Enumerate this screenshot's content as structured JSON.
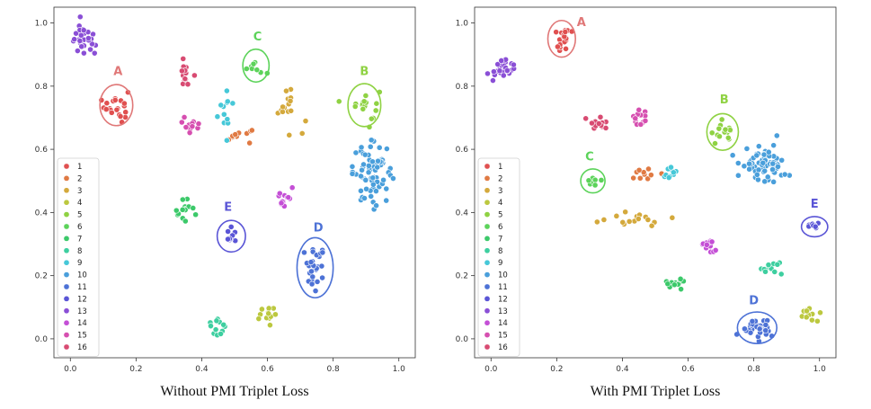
{
  "chart_data": [
    {
      "type": "scatter",
      "caption": "Without PMI Triplet Loss",
      "xlim": [
        -0.05,
        1.05
      ],
      "ylim": [
        -0.06,
        1.05
      ],
      "xticks": [
        "0.0",
        "0.2",
        "0.4",
        "0.6",
        "0.8",
        "1.0"
      ],
      "yticks": [
        "0.0",
        "0.2",
        "0.4",
        "0.6",
        "0.8",
        "1.0"
      ],
      "legend_labels": [
        "1",
        "2",
        "3",
        "4",
        "5",
        "6",
        "7",
        "8",
        "9",
        "10",
        "11",
        "12",
        "13",
        "14",
        "15",
        "16"
      ],
      "clusters": [
        {
          "label": "1",
          "color": "#e05050",
          "cx": 0.14,
          "cy": 0.74,
          "sx": 0.018,
          "sy": 0.026,
          "n": 22
        },
        {
          "label": "2",
          "color": "#e07a43",
          "cx": 0.51,
          "cy": 0.64,
          "sx": 0.025,
          "sy": 0.015,
          "n": 10
        },
        {
          "label": "3",
          "color": "#d4a93c",
          "cx": 0.665,
          "cy": 0.745,
          "sx": 0.028,
          "sy": 0.035,
          "n": 16
        },
        {
          "label": "4",
          "color": "#bcc83f",
          "cx": 0.605,
          "cy": 0.075,
          "sx": 0.018,
          "sy": 0.015,
          "n": 12
        },
        {
          "label": "5",
          "color": "#8fd243",
          "cx": 0.895,
          "cy": 0.74,
          "sx": 0.022,
          "sy": 0.032,
          "n": 18
        },
        {
          "label": "6",
          "color": "#5cd35a",
          "cx": 0.565,
          "cy": 0.865,
          "sx": 0.014,
          "sy": 0.015,
          "n": 8
        },
        {
          "label": "7",
          "color": "#3cc96a",
          "cx": 0.345,
          "cy": 0.41,
          "sx": 0.014,
          "sy": 0.02,
          "n": 14
        },
        {
          "label": "8",
          "color": "#3ecfa0",
          "cx": 0.445,
          "cy": 0.04,
          "sx": 0.018,
          "sy": 0.02,
          "n": 12
        },
        {
          "label": "9",
          "color": "#46c8d8",
          "cx": 0.47,
          "cy": 0.72,
          "sx": 0.014,
          "sy": 0.03,
          "n": 12
        },
        {
          "label": "10",
          "color": "#4a9fdb",
          "cx": 0.92,
          "cy": 0.525,
          "sx": 0.03,
          "sy": 0.045,
          "n": 70
        },
        {
          "label": "11",
          "color": "#4d72d6",
          "cx": 0.745,
          "cy": 0.225,
          "sx": 0.018,
          "sy": 0.032,
          "n": 32
        },
        {
          "label": "12",
          "color": "#5a55d6",
          "cx": 0.49,
          "cy": 0.325,
          "sx": 0.01,
          "sy": 0.014,
          "n": 10
        },
        {
          "label": "13",
          "color": "#8a4fd6",
          "cx": 0.04,
          "cy": 0.945,
          "sx": 0.018,
          "sy": 0.025,
          "n": 28
        },
        {
          "label": "14",
          "color": "#c44fd6",
          "cx": 0.655,
          "cy": 0.44,
          "sx": 0.012,
          "sy": 0.018,
          "n": 12
        },
        {
          "label": "15",
          "color": "#d64fb0",
          "cx": 0.365,
          "cy": 0.68,
          "sx": 0.012,
          "sy": 0.017,
          "n": 12
        },
        {
          "label": "16",
          "color": "#d84b72",
          "cx": 0.355,
          "cy": 0.845,
          "sx": 0.01,
          "sy": 0.025,
          "n": 14
        }
      ],
      "annotations": [
        {
          "text": "A",
          "cluster": "1",
          "color": "#e07878",
          "ex": 0.14,
          "ey": 0.74,
          "rx": 0.05,
          "ry": 0.065,
          "lx": 0.145,
          "ly": 0.835
        },
        {
          "text": "B",
          "cluster": "5",
          "color": "#8fd243",
          "ex": 0.895,
          "ey": 0.74,
          "rx": 0.05,
          "ry": 0.068,
          "lx": 0.895,
          "ly": 0.835
        },
        {
          "text": "C",
          "cluster": "6",
          "color": "#5cd35a",
          "ex": 0.565,
          "ey": 0.865,
          "rx": 0.04,
          "ry": 0.052,
          "lx": 0.57,
          "ly": 0.945
        },
        {
          "text": "D",
          "cluster": "11",
          "color": "#4d72d6",
          "ex": 0.745,
          "ey": 0.225,
          "rx": 0.055,
          "ry": 0.095,
          "lx": 0.755,
          "ly": 0.34
        },
        {
          "text": "E",
          "cluster": "12",
          "color": "#5a55d6",
          "ex": 0.49,
          "ey": 0.325,
          "rx": 0.043,
          "ry": 0.05,
          "lx": 0.48,
          "ly": 0.405
        }
      ]
    },
    {
      "type": "scatter",
      "caption": "With PMI Triplet Loss",
      "xlim": [
        -0.05,
        1.05
      ],
      "ylim": [
        -0.06,
        1.05
      ],
      "xticks": [
        "0.0",
        "0.2",
        "0.4",
        "0.6",
        "0.8",
        "1.0"
      ],
      "yticks": [
        "0.0",
        "0.2",
        "0.4",
        "0.6",
        "0.8",
        "1.0"
      ],
      "legend_labels": [
        "1",
        "2",
        "3",
        "4",
        "5",
        "6",
        "7",
        "8",
        "9",
        "10",
        "11",
        "12",
        "13",
        "14",
        "15",
        "16"
      ],
      "clusters": [
        {
          "label": "1",
          "color": "#e05050",
          "cx": 0.215,
          "cy": 0.95,
          "sx": 0.014,
          "sy": 0.02,
          "n": 22
        },
        {
          "label": "2",
          "color": "#e07a43",
          "cx": 0.455,
          "cy": 0.52,
          "sx": 0.03,
          "sy": 0.01,
          "n": 10
        },
        {
          "label": "3",
          "color": "#d4a93c",
          "cx": 0.43,
          "cy": 0.38,
          "sx": 0.06,
          "sy": 0.012,
          "n": 16
        },
        {
          "label": "4",
          "color": "#bcc83f",
          "cx": 0.965,
          "cy": 0.08,
          "sx": 0.015,
          "sy": 0.01,
          "n": 12
        },
        {
          "label": "5",
          "color": "#8fd243",
          "cx": 0.705,
          "cy": 0.655,
          "sx": 0.016,
          "sy": 0.018,
          "n": 16
        },
        {
          "label": "6",
          "color": "#5cd35a",
          "cx": 0.31,
          "cy": 0.5,
          "sx": 0.01,
          "sy": 0.012,
          "n": 8
        },
        {
          "label": "7",
          "color": "#3cc96a",
          "cx": 0.555,
          "cy": 0.175,
          "sx": 0.014,
          "sy": 0.01,
          "n": 12
        },
        {
          "label": "8",
          "color": "#3ecfa0",
          "cx": 0.85,
          "cy": 0.225,
          "sx": 0.018,
          "sy": 0.02,
          "n": 14
        },
        {
          "label": "9",
          "color": "#46c8d8",
          "cx": 0.55,
          "cy": 0.525,
          "sx": 0.015,
          "sy": 0.01,
          "n": 10
        },
        {
          "label": "10",
          "color": "#4a9fdb",
          "cx": 0.835,
          "cy": 0.555,
          "sx": 0.035,
          "sy": 0.03,
          "n": 70
        },
        {
          "label": "11",
          "color": "#4d72d6",
          "cx": 0.81,
          "cy": 0.035,
          "sx": 0.025,
          "sy": 0.018,
          "n": 32
        },
        {
          "label": "12",
          "color": "#5a55d6",
          "cx": 0.985,
          "cy": 0.355,
          "sx": 0.01,
          "sy": 0.008,
          "n": 10
        },
        {
          "label": "13",
          "color": "#8a4fd6",
          "cx": 0.035,
          "cy": 0.855,
          "sx": 0.018,
          "sy": 0.015,
          "n": 28
        },
        {
          "label": "14",
          "color": "#c44fd6",
          "cx": 0.665,
          "cy": 0.3,
          "sx": 0.012,
          "sy": 0.01,
          "n": 12
        },
        {
          "label": "15",
          "color": "#d64fb0",
          "cx": 0.455,
          "cy": 0.7,
          "sx": 0.014,
          "sy": 0.012,
          "n": 12
        },
        {
          "label": "16",
          "color": "#d84b72",
          "cx": 0.325,
          "cy": 0.68,
          "sx": 0.016,
          "sy": 0.01,
          "n": 14
        }
      ],
      "annotations": [
        {
          "text": "A",
          "cluster": "1",
          "color": "#e07878",
          "ex": 0.215,
          "ey": 0.95,
          "rx": 0.042,
          "ry": 0.058,
          "lx": 0.275,
          "ly": 0.99
        },
        {
          "text": "B",
          "cluster": "5",
          "color": "#8fd243",
          "ex": 0.705,
          "ey": 0.655,
          "rx": 0.048,
          "ry": 0.058,
          "lx": 0.71,
          "ly": 0.745
        },
        {
          "text": "C",
          "cluster": "6",
          "color": "#5cd35a",
          "ex": 0.31,
          "ey": 0.5,
          "rx": 0.037,
          "ry": 0.038,
          "lx": 0.3,
          "ly": 0.565
        },
        {
          "text": "D",
          "cluster": "11",
          "color": "#4d72d6",
          "ex": 0.81,
          "ey": 0.035,
          "rx": 0.06,
          "ry": 0.05,
          "lx": 0.8,
          "ly": 0.11
        },
        {
          "text": "E",
          "cluster": "12",
          "color": "#5a55d6",
          "ex": 0.985,
          "ey": 0.355,
          "rx": 0.04,
          "ry": 0.032,
          "lx": 0.985,
          "ly": 0.415
        }
      ]
    }
  ]
}
